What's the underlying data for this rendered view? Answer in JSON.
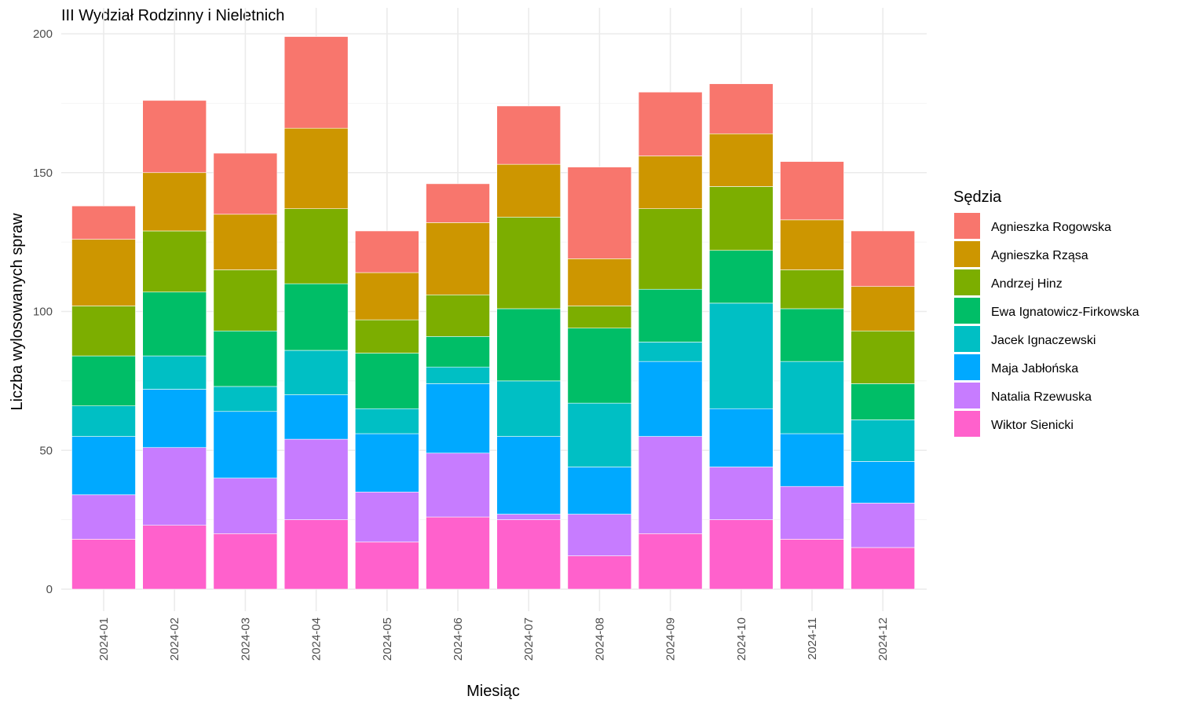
{
  "chart_data": {
    "type": "bar",
    "stacked": true,
    "title": "III Wydział Rodzinny i Nieletnich",
    "xlabel": "Miesiąc",
    "ylabel": "Liczba wylosowanych spraw",
    "ylim": [
      0,
      200
    ],
    "yticks": [
      0,
      50,
      100,
      150,
      200
    ],
    "grid": true,
    "legend_title": "Sędzia",
    "legend_position": "right",
    "categories": [
      "2024-01",
      "2024-02",
      "2024-03",
      "2024-04",
      "2024-05",
      "2024-06",
      "2024-07",
      "2024-08",
      "2024-09",
      "2024-10",
      "2024-11",
      "2024-12"
    ],
    "series": [
      {
        "name": "Agnieszka Rogowska",
        "color": "#F8766D",
        "values": [
          12,
          26,
          22,
          33,
          15,
          14,
          21,
          33,
          23,
          18,
          21,
          20
        ]
      },
      {
        "name": "Agnieszka Rząsa",
        "color": "#CD9600",
        "values": [
          24,
          21,
          20,
          29,
          17,
          26,
          19,
          17,
          19,
          19,
          18,
          16
        ]
      },
      {
        "name": "Andrzej Hinz",
        "color": "#7CAE00",
        "values": [
          18,
          22,
          22,
          27,
          12,
          15,
          33,
          8,
          29,
          23,
          14,
          19
        ]
      },
      {
        "name": "Ewa Ignatowicz-Firkowska",
        "color": "#00BE67",
        "values": [
          18,
          23,
          20,
          24,
          20,
          11,
          26,
          27,
          19,
          19,
          19,
          13
        ]
      },
      {
        "name": "Jacek Ignaczewski",
        "color": "#00BFC4",
        "values": [
          11,
          12,
          9,
          16,
          9,
          6,
          20,
          23,
          7,
          38,
          26,
          15
        ]
      },
      {
        "name": "Maja Jabłońska",
        "color": "#00A9FF",
        "values": [
          21,
          21,
          24,
          16,
          21,
          25,
          28,
          17,
          27,
          21,
          19,
          15
        ]
      },
      {
        "name": "Natalia Rzewuska",
        "color": "#C77CFF",
        "values": [
          16,
          28,
          20,
          29,
          18,
          23,
          2,
          15,
          35,
          19,
          19,
          16
        ]
      },
      {
        "name": "Wiktor Sienicki",
        "color": "#FF61CC",
        "values": [
          18,
          23,
          20,
          25,
          17,
          26,
          25,
          12,
          20,
          25,
          18,
          15
        ]
      }
    ]
  }
}
